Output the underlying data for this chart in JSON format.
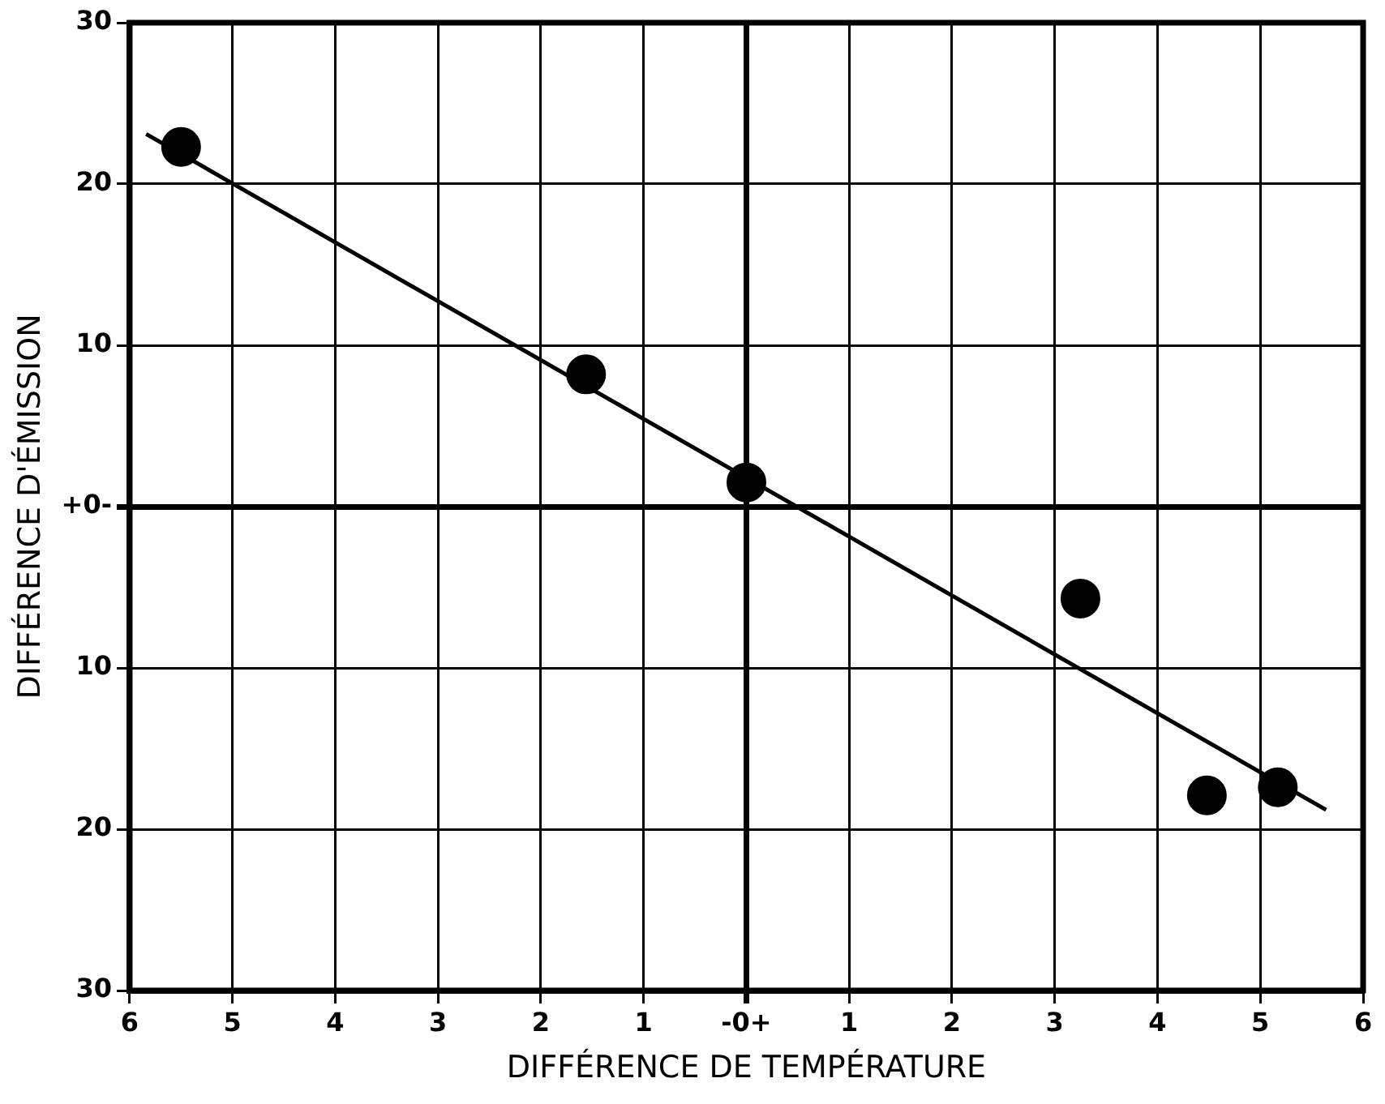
{
  "chart_data": {
    "type": "scatter",
    "xlabel": "DIFFÉRENCE DE TEMPÉRATURE",
    "ylabel": "DIFFÉRENCE D'ÉMISSION",
    "xlim": [
      -6,
      6
    ],
    "ylim": [
      -30,
      30
    ],
    "xticks": [
      {
        "value": -6,
        "label": "6"
      },
      {
        "value": -5,
        "label": "5"
      },
      {
        "value": -4,
        "label": "4"
      },
      {
        "value": -3,
        "label": "3"
      },
      {
        "value": -2,
        "label": "2"
      },
      {
        "value": -1,
        "label": "1"
      },
      {
        "value": 0,
        "label": "-0+"
      },
      1,
      2,
      3,
      4,
      5,
      6
    ],
    "yticks": [
      {
        "value": -30,
        "label": "30"
      },
      {
        "value": -20,
        "label": "20"
      },
      {
        "value": -10,
        "label": "10"
      },
      {
        "value": 0,
        "label": "+0-"
      },
      10,
      20,
      30
    ],
    "grid": true,
    "marker": "circle",
    "legend": false,
    "series": [
      {
        "type": "scatter",
        "color": "#000000",
        "x": [
          -5.5,
          -1.56,
          0,
          3.25,
          4.48,
          5.17
        ],
        "values": [
          22.3,
          8.2,
          1.5,
          -5.7,
          -17.9,
          -17.4
        ]
      },
      {
        "type": "line",
        "color": "#000000",
        "marker": "none",
        "line_style": "solid",
        "x": [
          -5.84,
          5.64
        ],
        "values": [
          23.1,
          -18.8
        ]
      }
    ]
  }
}
